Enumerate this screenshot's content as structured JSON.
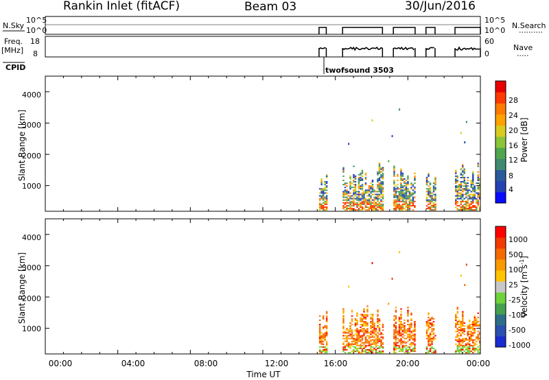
{
  "header": {
    "station": "Rankin Inlet (fitACF)",
    "beam": "Beam 03",
    "date": "30/Jun/2016"
  },
  "strip_labels": {
    "nsky": "N.Sky",
    "freq_line1": "Freq.",
    "freq_line2": "[MHz]",
    "cpid": "CPID",
    "nsearch": "N.Search",
    "nave": "Nave",
    "cpid_value": "twofsound 3503",
    "nsky_ticks": [
      "10^5",
      "10^0"
    ],
    "freq_ticks": [
      "18",
      "8"
    ],
    "nave_ticks": [
      "60",
      "0"
    ]
  },
  "colors": {
    "power_scale": [
      "#0a0aff",
      "#2442b4",
      "#2a5a9a",
      "#3f8a70",
      "#4fa64e",
      "#8cc43a",
      "#d8cc20",
      "#ffa200",
      "#ff7a00",
      "#ff3a00",
      "#e80000"
    ],
    "velocity_scale": [
      "#ff0000",
      "#f23a00",
      "#f56a00",
      "#fa9a00",
      "#ffc400",
      "#c8c8c8",
      "#6fd23a",
      "#45a050",
      "#2e6e8a",
      "#2a50b0",
      "#1a2cd0"
    ]
  },
  "chart_data": [
    {
      "type": "heatmap",
      "title": "Power",
      "ylabel": "Slant Range [km]",
      "colorbar_label": "Power [dB]",
      "colorbar_ticks": [
        "4",
        "8",
        "12",
        "16",
        "20",
        "24",
        "28"
      ],
      "xlim": [
        0,
        24
      ],
      "ylim": [
        180,
        4500
      ],
      "y_ticks": [
        "1000",
        "2000",
        "3000",
        "4000"
      ],
      "data_windows_ut_hours": [
        [
          15.1,
          15.5
        ],
        [
          16.4,
          18.6
        ],
        [
          19.2,
          20.4
        ],
        [
          21.0,
          21.5
        ],
        [
          22.6,
          24.0
        ]
      ],
      "sparse_echo_points": [
        {
          "ut": 19.5,
          "range_km": 3400
        },
        {
          "ut": 18.0,
          "range_km": 3050
        },
        {
          "ut": 19.1,
          "range_km": 2550
        },
        {
          "ut": 23.2,
          "range_km": 3000
        },
        {
          "ut": 22.9,
          "range_km": 2650
        },
        {
          "ut": 23.1,
          "range_km": 2350
        },
        {
          "ut": 16.7,
          "range_km": 2300
        },
        {
          "ut": 18.9,
          "range_km": 1750
        }
      ]
    },
    {
      "type": "heatmap",
      "title": "Velocity",
      "ylabel": "Slant Range [km]",
      "colorbar_label": "Velocity [m s^-1]",
      "colorbar_ticks": [
        "1000",
        "500",
        "100",
        "25",
        "-25",
        "-100",
        "-500",
        "-1000"
      ],
      "xlim": [
        0,
        24
      ],
      "ylim": [
        180,
        4500
      ],
      "y_ticks": [
        "1000",
        "2000",
        "3000",
        "4000"
      ],
      "xlabel": "Time UT",
      "x_ticks": [
        "00:00",
        "04:00",
        "08:00",
        "12:00",
        "16:00",
        "20:00",
        "00:00"
      ]
    }
  ]
}
